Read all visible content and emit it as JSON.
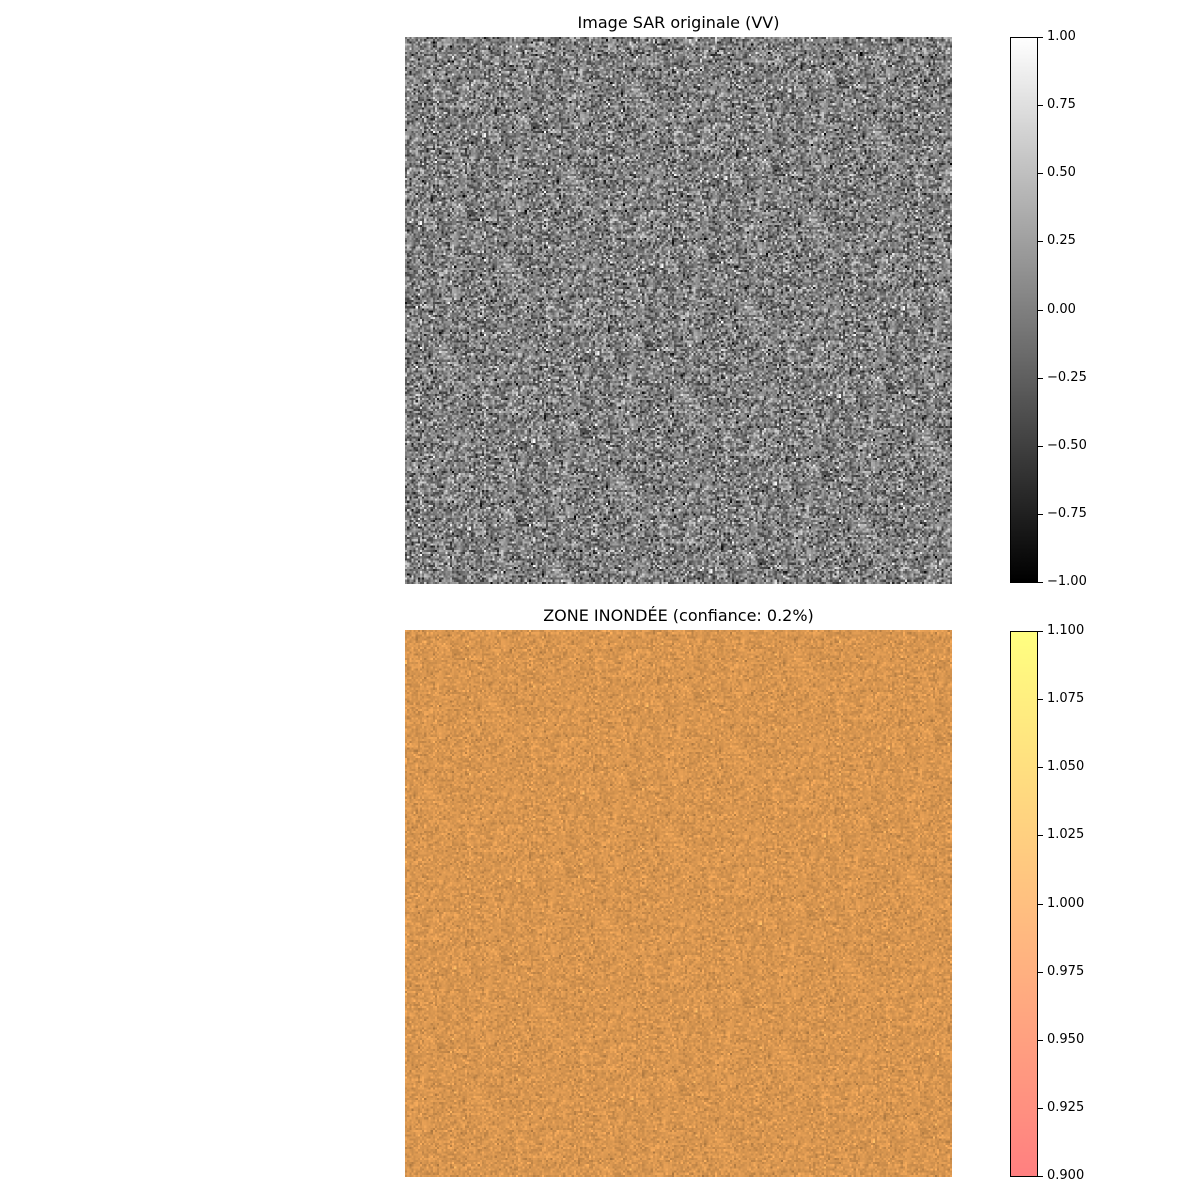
{
  "chart_data": [
    {
      "type": "heatmap",
      "title": "Image SAR originale (VV)",
      "colormap": "gray",
      "noise": {
        "mean": 0.0,
        "std": 0.33,
        "clip": [
          -1.0,
          1.0
        ]
      },
      "grid_size": 256,
      "colorbar": {
        "range": [
          -1.0,
          1.0
        ],
        "ticks": [
          1.0,
          0.75,
          0.5,
          0.25,
          0.0,
          -0.25,
          -0.5,
          -0.75,
          -1.0
        ],
        "tick_labels": [
          "1.00",
          "0.75",
          "0.50",
          "0.25",
          "0.00",
          "−0.25",
          "−0.50",
          "−0.75",
          "−1.00"
        ]
      }
    },
    {
      "type": "heatmap",
      "title": "ZONE INONDÉE (confiance: 0.2%)",
      "colormap": "autumn-overlay",
      "base_color": "#d89650",
      "grid_size": 256,
      "colorbar": {
        "range": [
          0.9,
          1.1
        ],
        "colors": [
          "#ff8080",
          "#ffab80",
          "#ffd580",
          "#ffff80"
        ],
        "ticks": [
          1.1,
          1.075,
          1.05,
          1.025,
          1.0,
          0.975,
          0.95,
          0.925,
          0.9
        ],
        "tick_labels": [
          "1.100",
          "1.075",
          "1.050",
          "1.025",
          "1.000",
          "0.975",
          "0.950",
          "0.925",
          "0.900"
        ]
      }
    }
  ]
}
